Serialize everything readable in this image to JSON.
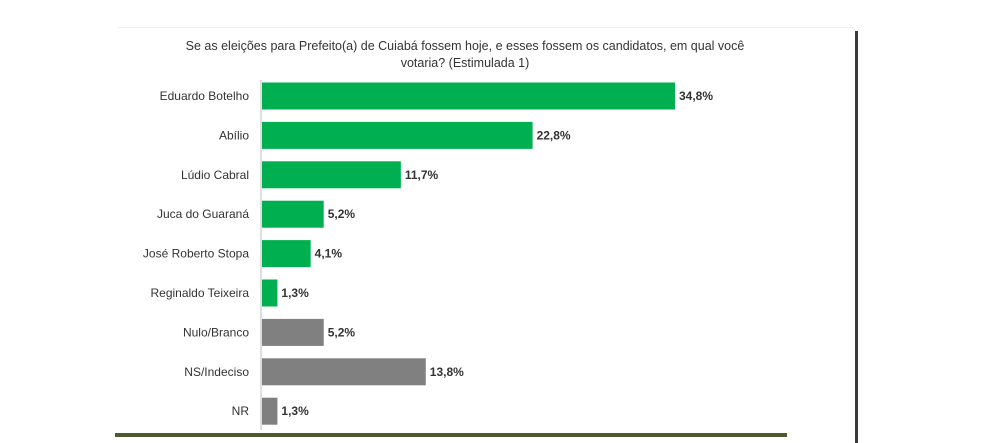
{
  "chart_data": {
    "type": "bar",
    "orientation": "horizontal",
    "title": "Se as eleições para Prefeito(a) de Cuiabá fossem hoje, e esses fossem os candidatos, em qual você votaria? (Estimulada 1)",
    "categories": [
      "Eduardo Botelho",
      "Abílio",
      "Lúdio Cabral",
      "Juca do Guaraná",
      "José Roberto Stopa",
      "Reginaldo Teixeira",
      "Nulo/Branco",
      "NS/Indeciso",
      "NR"
    ],
    "values": [
      34.8,
      22.8,
      11.7,
      5.2,
      4.1,
      1.3,
      5.2,
      13.8,
      1.3
    ],
    "value_labels": [
      "34,8%",
      "22,8%",
      "11,7%",
      "5,2%",
      "4,1%",
      "1,3%",
      "5,2%",
      "13,8%",
      "1,3%"
    ],
    "bar_colors": [
      "#00b050",
      "#00b050",
      "#00b050",
      "#00b050",
      "#00b050",
      "#00b050",
      "#808080",
      "#808080",
      "#808080"
    ],
    "xlim": [
      0,
      34.8
    ],
    "grid": false,
    "legend": "none"
  }
}
